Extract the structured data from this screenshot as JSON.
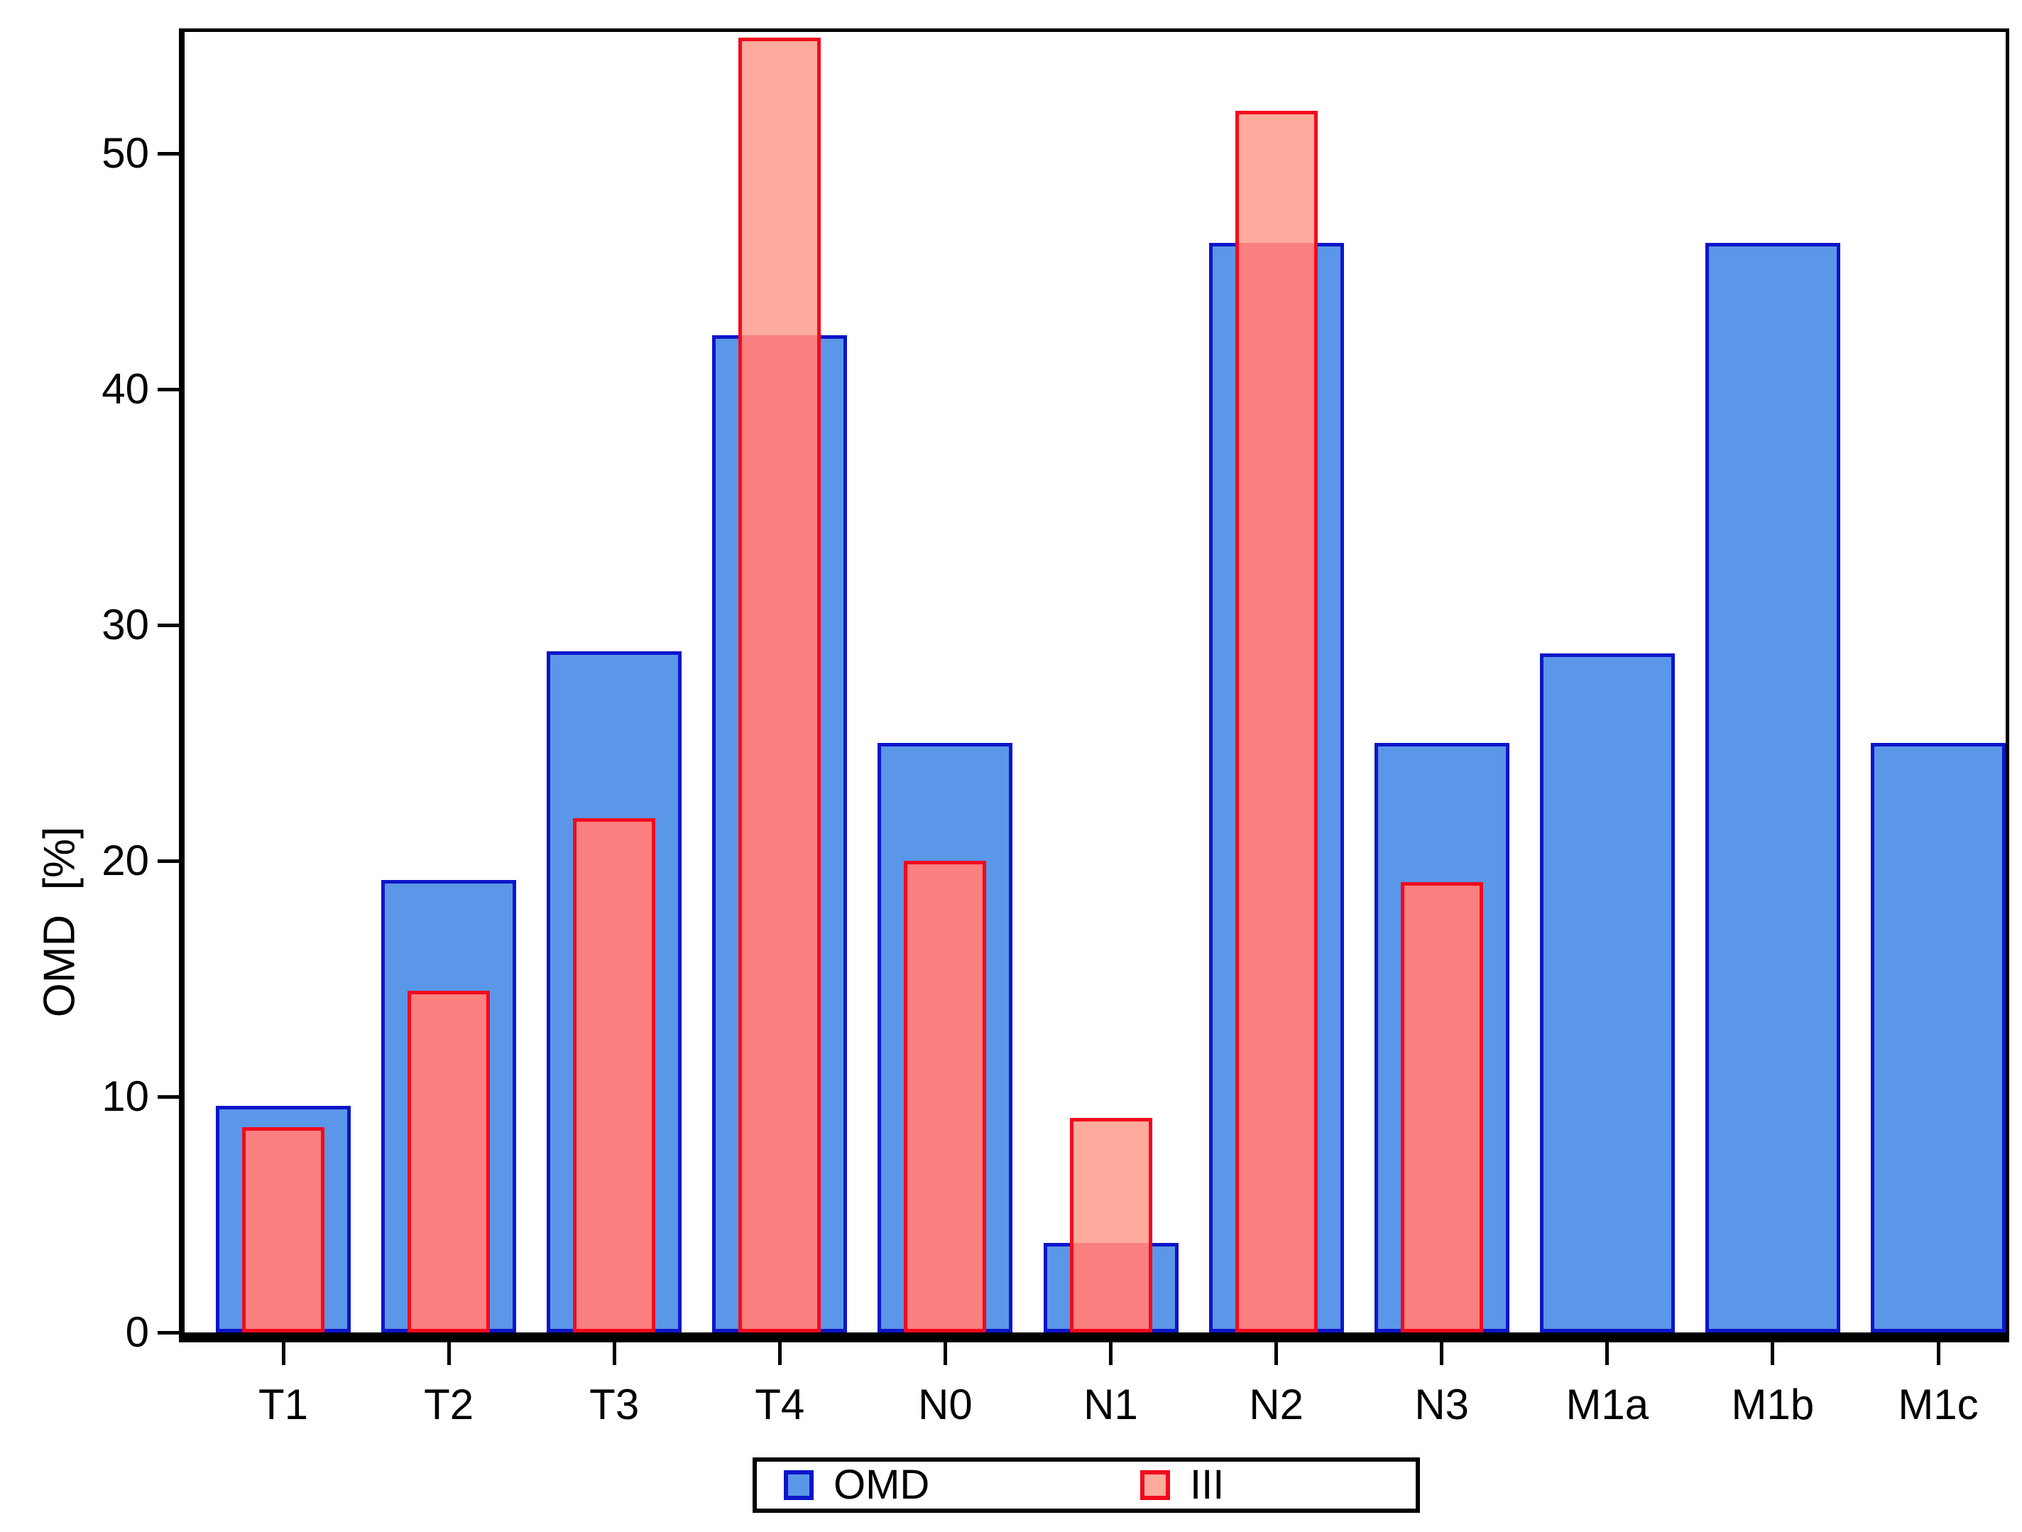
{
  "figure": {
    "background": "#FFFFFF"
  },
  "colors": {
    "blue_fill": "#5B97E8",
    "blue_border": "#0D15C9",
    "red_fill": "#F9807F",
    "red_fill_light": "#FCAB9D",
    "red_border": "#F20A1E",
    "axis": "#000000",
    "text": "#000000"
  },
  "y_axis": {
    "title": "OMD  [%]",
    "tick_values": [
      0,
      10,
      20,
      30,
      40,
      50
    ]
  },
  "legend": {
    "items": [
      {
        "label": "OMD",
        "color_key": "blue"
      },
      {
        "label": "III",
        "color_key": "red"
      }
    ]
  },
  "chart_data": {
    "type": "bar",
    "title": "",
    "xlabel": "",
    "ylabel": "OMD [%]",
    "ylim": [
      0,
      55.2
    ],
    "grid": false,
    "legend_position": "bottom",
    "categories": [
      "T1",
      "T2",
      "T3",
      "T4",
      "N0",
      "N1",
      "N2",
      "N3",
      "M1a",
      "M1b",
      "M1c"
    ],
    "series": [
      {
        "name": "OMD",
        "style": "wide-blue",
        "values": [
          9.6,
          19.2,
          28.9,
          42.3,
          25.0,
          3.8,
          46.2,
          25.0,
          28.8,
          46.2,
          25.0
        ]
      },
      {
        "name": "III",
        "style": "narrow-red-overlay",
        "values": [
          8.7,
          14.5,
          21.8,
          54.9,
          20.0,
          9.1,
          51.8,
          19.1,
          null,
          null,
          null
        ]
      }
    ]
  }
}
